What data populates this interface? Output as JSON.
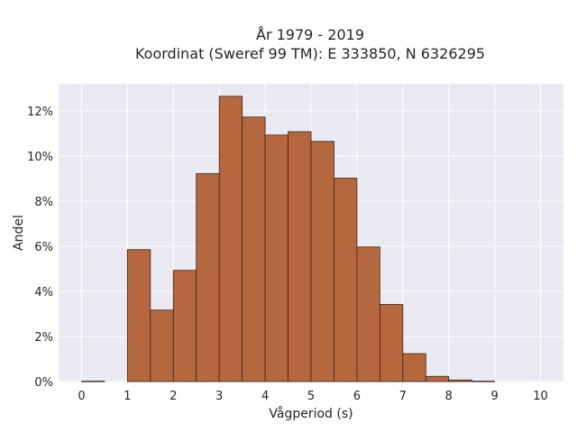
{
  "chart_data": {
    "type": "bar",
    "title": "År 1979 - 2019",
    "subtitle": "Koordinat (Sweref 99 TM): E 333850, N 6326295",
    "xlabel": "Vågperiod (s)",
    "ylabel": "Andel",
    "x_ticks": [
      "0",
      "1",
      "2",
      "3",
      "4",
      "5",
      "6",
      "7",
      "8",
      "9",
      "10"
    ],
    "y_ticks": [
      "0%",
      "2%",
      "4%",
      "6%",
      "8%",
      "10%",
      "12%"
    ],
    "xlim": [
      -0.5,
      10.5
    ],
    "ylim": [
      0,
      13.2
    ],
    "bin_width": 0.5,
    "bin_edges": [
      0,
      0.5,
      1,
      1.5,
      2,
      2.5,
      3,
      3.5,
      4,
      4.5,
      5,
      5.5,
      6,
      6.5,
      7,
      7.5,
      8,
      8.5,
      9,
      9.5,
      10
    ],
    "values": [
      0.02,
      0,
      5.85,
      3.17,
      4.93,
      9.22,
      12.65,
      11.73,
      10.93,
      11.08,
      10.65,
      9.02,
      5.97,
      3.42,
      1.24,
      0.23,
      0.07,
      0.02,
      0,
      0
    ],
    "value_unit": "%",
    "bar_color": "#b5683e",
    "bar_edge_color": "#3a2318",
    "background_color": "#eaeaf2",
    "grid_color": "#ffffff",
    "grid": true,
    "legend": false
  }
}
